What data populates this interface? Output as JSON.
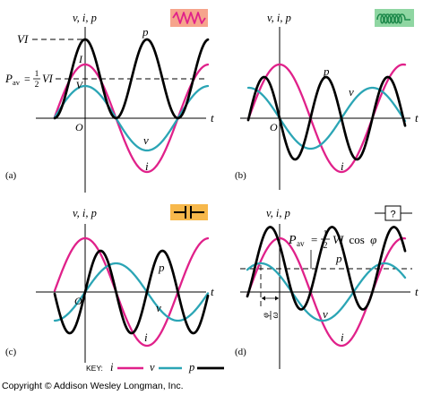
{
  "colors": {
    "i": "#e0218a",
    "v": "#2ba5b5",
    "p": "#000000"
  },
  "icons": {
    "a": "resistor-icon",
    "b": "inductor-icon",
    "c": "capacitor-icon",
    "d": "unknown-element-icon"
  },
  "panels": {
    "a": {
      "axis_label": "v, i, p",
      "time_label": "t",
      "origin": "O",
      "caption": "(a)",
      "vi_label": "VI",
      "peak_i_label": "I",
      "peak_v_label": "V",
      "p_label": "p",
      "v_label": "v",
      "i_label": "i",
      "pav": {
        "symbol": "P",
        "subscript": "av",
        "equals": "=",
        "numerator": "1",
        "denominator": "2",
        "rhs": "VI"
      }
    },
    "b": {
      "axis_label": "v, i, p",
      "time_label": "t",
      "origin": "O",
      "caption": "(b)",
      "p_label": "p",
      "v_label": "v",
      "i_label": "i"
    },
    "c": {
      "axis_label": "v, i, p",
      "time_label": "t",
      "origin": "O",
      "caption": "(c)",
      "p_label": "p",
      "v_label": "v",
      "i_label": "i"
    },
    "d": {
      "axis_label": "v, i, p",
      "time_label": "t",
      "caption": "(d)",
      "p_label": "p",
      "v_label": "v",
      "i_label": "i",
      "element_label": "?",
      "pav": {
        "symbol": "P",
        "subscript": "av",
        "equals": "=",
        "numerator": "1",
        "denominator": "2",
        "rhs": "VI",
        "func": "cos",
        "angle": "φ"
      },
      "phase": {
        "numerator": "φ",
        "denominator": "ω"
      }
    }
  },
  "key": {
    "label": "KEY:",
    "i": "i",
    "v": "v",
    "p": "p"
  },
  "copyright": "Copyright © Addison Wesley Longman, Inc."
}
